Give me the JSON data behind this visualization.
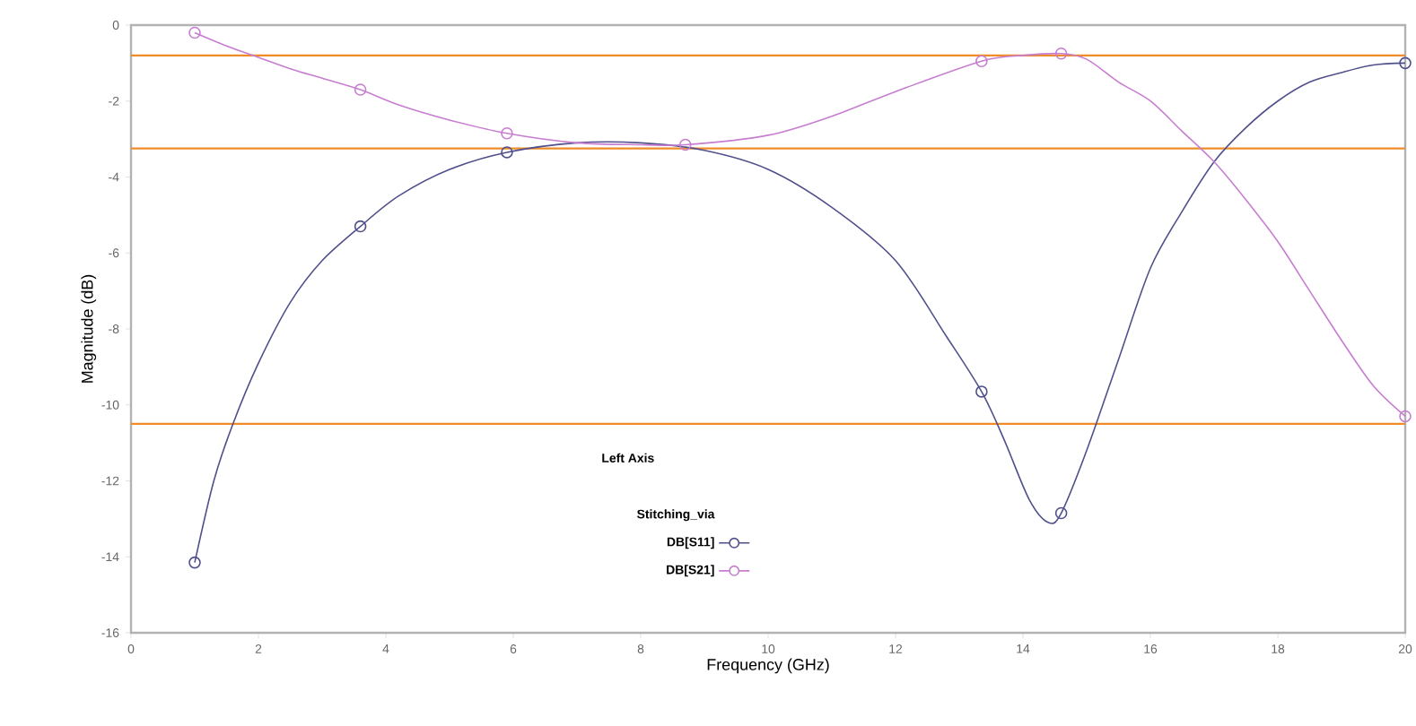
{
  "chart_data": {
    "type": "line",
    "xlabel": "Frequency (GHz)",
    "ylabel": "Magnitude (dB)",
    "legend_title": "Left Axis",
    "annotations": [
      "Stitching_via"
    ],
    "xlim": [
      0,
      20
    ],
    "ylim": [
      -16,
      0
    ],
    "xticks": [
      0,
      2,
      4,
      6,
      8,
      10,
      12,
      14,
      16,
      18,
      20
    ],
    "yticks": [
      -16,
      -14,
      -12,
      -10,
      -8,
      -6,
      -4,
      -2,
      0
    ],
    "grid": false,
    "legend": "bottom",
    "series": [
      {
        "name": "DB[S11]",
        "color": "#50508c",
        "x": [
          1,
          1.3,
          1.6,
          2,
          2.5,
          3,
          3.6,
          4.2,
          5,
          5.9,
          7,
          8,
          9,
          10,
          11,
          12,
          12.8,
          13.35,
          13.7,
          14.1,
          14.4,
          14.6,
          15,
          15.5,
          16,
          16.5,
          17,
          17.5,
          18,
          18.5,
          19,
          19.5,
          20
        ],
        "values": [
          -14.15,
          -12.0,
          -10.5,
          -8.9,
          -7.3,
          -6.2,
          -5.3,
          -4.5,
          -3.8,
          -3.35,
          -3.1,
          -3.1,
          -3.3,
          -3.8,
          -4.8,
          -6.2,
          -8.2,
          -9.65,
          -10.9,
          -12.5,
          -13.1,
          -12.85,
          -11.2,
          -8.8,
          -6.4,
          -4.9,
          -3.6,
          -2.7,
          -2.0,
          -1.5,
          -1.25,
          -1.05,
          -1.0
        ]
      },
      {
        "name": "DB[S21]",
        "color": "#c77dd0",
        "x": [
          1,
          1.5,
          2,
          2.5,
          3,
          3.6,
          4.2,
          5,
          5.9,
          7,
          8,
          8.7,
          10,
          11,
          12,
          13.35,
          14,
          14.6,
          15,
          15.5,
          16,
          16.5,
          17,
          17.5,
          18,
          18.5,
          19,
          19.5,
          20
        ],
        "values": [
          -0.2,
          -0.55,
          -0.85,
          -1.15,
          -1.4,
          -1.7,
          -2.1,
          -2.5,
          -2.85,
          -3.1,
          -3.15,
          -3.15,
          -2.9,
          -2.4,
          -1.75,
          -0.95,
          -0.8,
          -0.75,
          -0.9,
          -1.5,
          -2.0,
          -2.8,
          -3.6,
          -4.6,
          -5.7,
          -7.0,
          -8.3,
          -9.5,
          -10.3
        ]
      },
      {
        "type": "scatter",
        "color": "#50508c",
        "marker": "circle",
        "x": [
          1,
          3.6,
          5.9,
          13.35,
          14.6,
          20
        ],
        "values": [
          -14.15,
          -5.3,
          -3.35,
          -9.65,
          -12.85,
          -1.0
        ]
      },
      {
        "type": "scatter",
        "color": "#c77dd0",
        "marker": "circle",
        "x": [
          1,
          3.6,
          5.9,
          8.7,
          13.35,
          14.6,
          20
        ],
        "values": [
          -0.2,
          -1.7,
          -2.85,
          -3.15,
          -0.95,
          -0.75,
          -10.3
        ]
      }
    ],
    "ref_lines": [
      {
        "axis": "y",
        "value": -0.8,
        "color": "#f08c28"
      },
      {
        "axis": "y",
        "value": -3.25,
        "color": "#f08c28"
      },
      {
        "axis": "y",
        "value": -10.5,
        "color": "#f08c28"
      }
    ]
  }
}
